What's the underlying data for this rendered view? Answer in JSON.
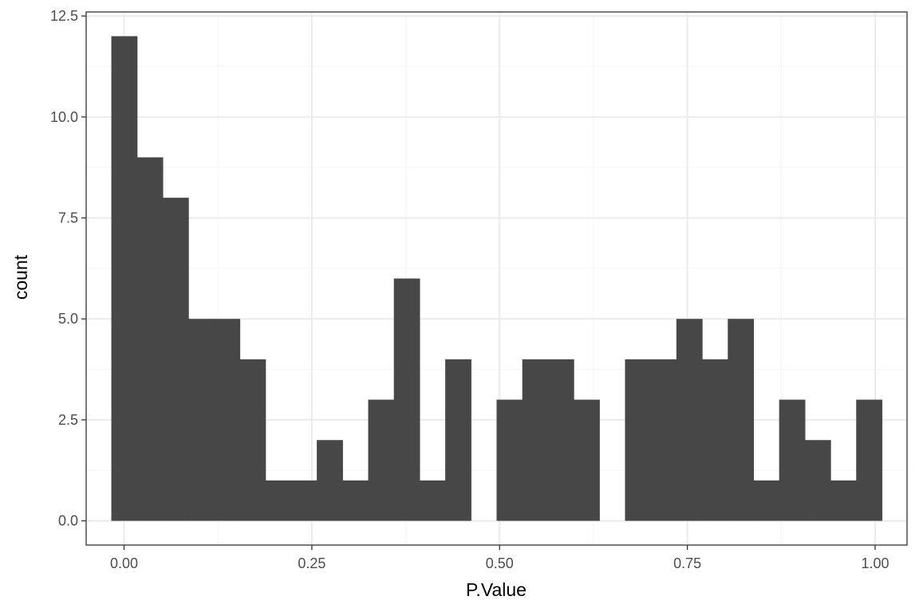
{
  "chart_data": {
    "type": "bar",
    "subtype": "histogram",
    "title": "",
    "xlabel": "P.Value",
    "ylabel": "count",
    "xlim": [
      -0.0505,
      1.0425
    ],
    "ylim": [
      -0.6,
      12.6
    ],
    "x_ticks": [
      0,
      0.25,
      0.5,
      0.75,
      1
    ],
    "x_tick_labels": [
      "0.00",
      "0.25",
      "0.50",
      "0.75",
      "1.00"
    ],
    "y_ticks": [
      0,
      2.5,
      5,
      7.5,
      10,
      12.5
    ],
    "y_tick_labels": [
      "0.0",
      "2.5",
      "5.0",
      "7.5",
      "10.0",
      "12.5"
    ],
    "bins": {
      "start": -0.017,
      "width": 0.0342
    },
    "counts": [
      12,
      9,
      8,
      5,
      5,
      4,
      1,
      1,
      2,
      1,
      3,
      6,
      1,
      4,
      0,
      3,
      4,
      4,
      3,
      0,
      4,
      4,
      5,
      4,
      5,
      1,
      3,
      2,
      1,
      3
    ],
    "grid": true,
    "theme": "bw",
    "legend": "none",
    "colors": {
      "bar_fill": "#474747",
      "grid_major": "#ebebeb",
      "grid_minor": "#f5f5f5",
      "panel_border": "#333333",
      "tick_text": "#4d4d4d",
      "axis_title_text": "#000000"
    }
  }
}
